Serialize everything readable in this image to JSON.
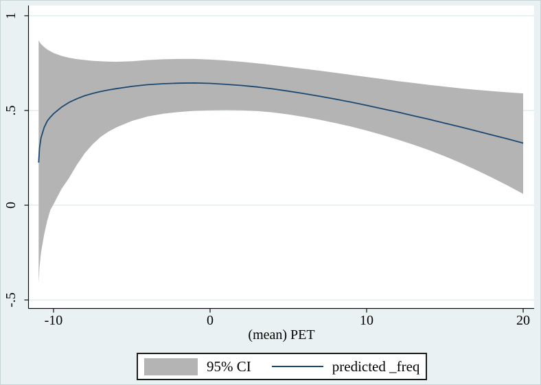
{
  "colors": {
    "figure_background": "#e9f1f2",
    "plot_background": "#ffffff",
    "gridline": "#e2edee",
    "axis": "#0a0a0a",
    "ci_band": "#b4b4b4",
    "prediction_line": "#1a476f",
    "legend_border": "#1a1a1a",
    "text": "#000000"
  },
  "legend": {
    "position": "bottom-center",
    "items": [
      {
        "label": "95% CI",
        "swatch": "area",
        "color": "#b4b4b4"
      },
      {
        "label": "predicted _freq",
        "swatch": "line",
        "color": "#1a476f"
      }
    ]
  },
  "chart_data": {
    "type": "line",
    "title": "",
    "xlabel": "(mean) PET",
    "ylabel": "",
    "xlim": [
      -11.6,
      20.7
    ],
    "ylim": [
      -0.545,
      1.054
    ],
    "grid": "horizontal",
    "legend_position": "bottom-center",
    "x_ticks": [
      {
        "value": -10,
        "label": "-10"
      },
      {
        "value": 0,
        "label": "0"
      },
      {
        "value": 10,
        "label": "10"
      },
      {
        "value": 20,
        "label": "20"
      }
    ],
    "y_ticks": [
      {
        "value": 1,
        "label": "1"
      },
      {
        "value": 0.5,
        "label": ".5"
      },
      {
        "value": 0,
        "label": "0"
      },
      {
        "value": -0.5,
        "label": "-.5"
      }
    ],
    "x": [
      -10.95,
      -10.9,
      -10.8,
      -10.6,
      -10.4,
      -10.2,
      -10,
      -9.5,
      -9,
      -8.5,
      -8,
      -7.5,
      -7,
      -6.5,
      -6,
      -5,
      -4,
      -3,
      -2,
      -1,
      0,
      1,
      2,
      3,
      4,
      5,
      6,
      7,
      8,
      9,
      10,
      11,
      12,
      13,
      14,
      15,
      16,
      17,
      18,
      19,
      20
    ],
    "series": [
      {
        "name": "95% CI",
        "type": "band",
        "color": "#b4b4b4",
        "upper": [
          0.87,
          0.862,
          0.85,
          0.835,
          0.822,
          0.812,
          0.803,
          0.788,
          0.778,
          0.771,
          0.766,
          0.762,
          0.76,
          0.758,
          0.757,
          0.76,
          0.766,
          0.77,
          0.772,
          0.772,
          0.769,
          0.764,
          0.757,
          0.749,
          0.74,
          0.73,
          0.72,
          0.71,
          0.699,
          0.688,
          0.677,
          0.666,
          0.655,
          0.645,
          0.635,
          0.626,
          0.617,
          0.609,
          0.602,
          0.596,
          0.59
        ],
        "lower": [
          -0.41,
          -0.33,
          -0.25,
          -0.155,
          -0.08,
          -0.025,
          0.005,
          0.085,
          0.145,
          0.215,
          0.275,
          0.322,
          0.36,
          0.388,
          0.41,
          0.445,
          0.468,
          0.483,
          0.492,
          0.498,
          0.501,
          0.502,
          0.501,
          0.497,
          0.49,
          0.479,
          0.466,
          0.451,
          0.434,
          0.415,
          0.394,
          0.371,
          0.346,
          0.319,
          0.29,
          0.258,
          0.223,
          0.186,
          0.146,
          0.104,
          0.06
        ]
      },
      {
        "name": "predicted _freq",
        "type": "line",
        "color": "#1a476f",
        "values": [
          0.225,
          0.3,
          0.355,
          0.41,
          0.445,
          0.465,
          0.483,
          0.517,
          0.543,
          0.562,
          0.578,
          0.59,
          0.6,
          0.608,
          0.615,
          0.627,
          0.636,
          0.641,
          0.644,
          0.645,
          0.643,
          0.638,
          0.632,
          0.624,
          0.614,
          0.602,
          0.589,
          0.575,
          0.56,
          0.544,
          0.527,
          0.509,
          0.491,
          0.472,
          0.453,
          0.433,
          0.413,
          0.392,
          0.371,
          0.35,
          0.328
        ]
      }
    ]
  }
}
